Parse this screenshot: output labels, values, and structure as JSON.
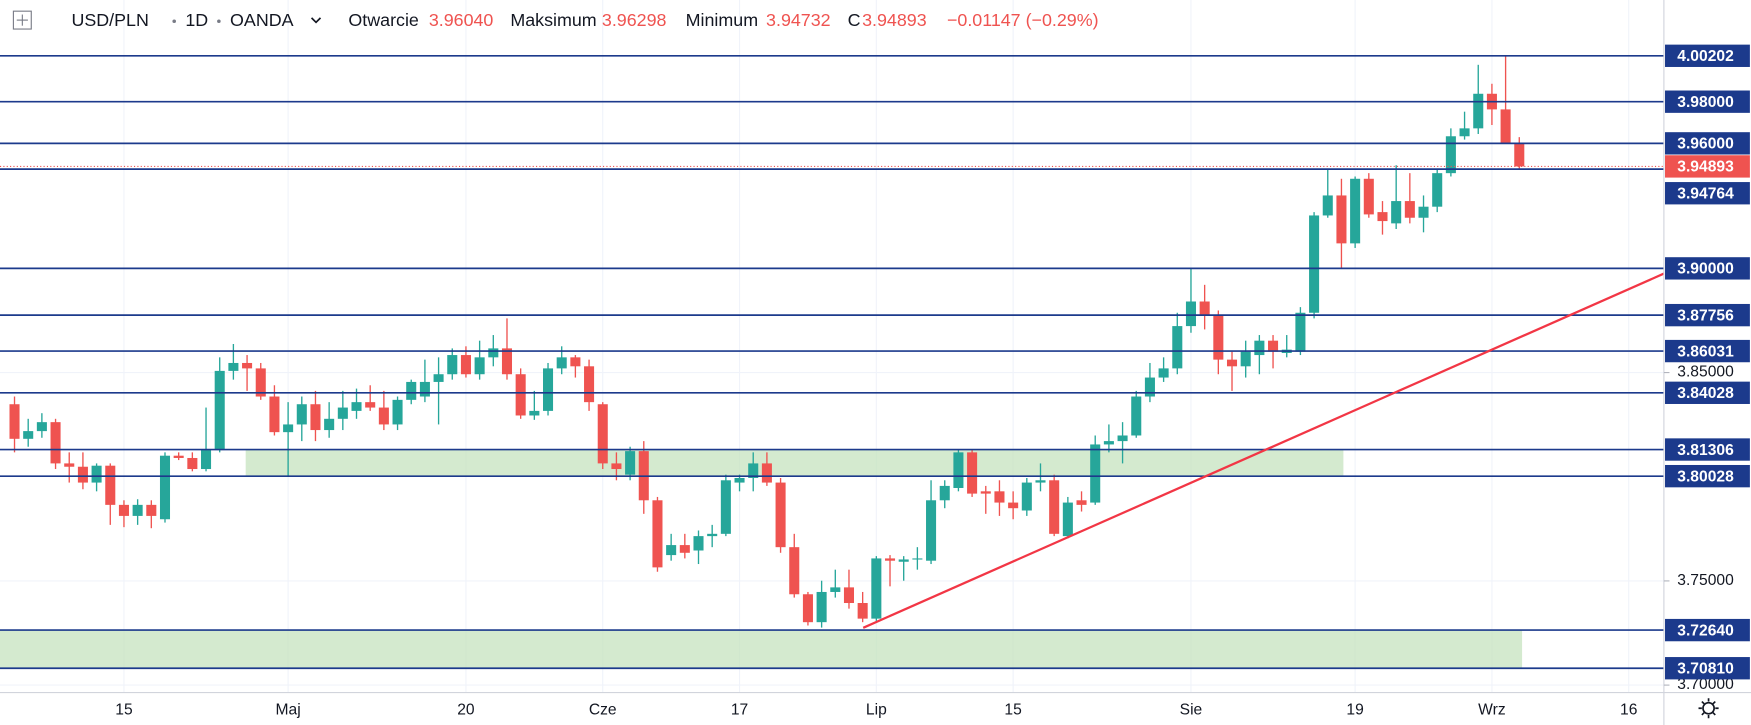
{
  "header": {
    "symbol": "USD/PLN",
    "interval": "1D",
    "source": "OANDA",
    "fields": [
      {
        "label": "Otwarcie",
        "value": "3.96040"
      },
      {
        "label": "Maksimum",
        "value": "3.96298"
      },
      {
        "label": "Minimum",
        "value": "3.94732"
      },
      {
        "label": "C",
        "value": "3.94893"
      }
    ],
    "change": "−0.01147 (−0.29%)"
  },
  "chart_data": {
    "type": "candlestick",
    "up_color": "#26a69a",
    "down_color": "#ef5350",
    "level_color": "#1c3a8c",
    "zone_color": "#c5e3bf",
    "grid": true,
    "ylim": [
      3.6964,
      4.0288
    ],
    "yticks": [
      {
        "value": 3.7,
        "label": "3.70000"
      },
      {
        "value": 3.75,
        "label": "3.75000"
      },
      {
        "value": 3.85,
        "label": "3.85000"
      }
    ],
    "levels": [
      {
        "value": 4.00202,
        "label": "4.00202"
      },
      {
        "value": 3.98,
        "label": "3.98000"
      },
      {
        "value": 3.96,
        "label": "3.96000"
      },
      {
        "value": 3.94764,
        "label": "3.94764"
      },
      {
        "value": 3.9,
        "label": "3.90000"
      },
      {
        "value": 3.87756,
        "label": "3.87756"
      },
      {
        "value": 3.86031,
        "label": "3.86031"
      },
      {
        "value": 3.84028,
        "label": "3.84028"
      },
      {
        "value": 3.81306,
        "label": "3.81306"
      },
      {
        "value": 3.80028,
        "label": "3.80028"
      },
      {
        "value": 3.7264,
        "label": "3.72640"
      },
      {
        "value": 3.7081,
        "label": "3.70810"
      }
    ],
    "last_price": {
      "value": 3.94893,
      "label": "3.94893",
      "color": "#ef5350"
    },
    "zones": [
      {
        "from": 3.80028,
        "to": 3.81306
      },
      {
        "from": 3.7081,
        "to": 3.7264
      }
    ],
    "trendline": {
      "color": "#f23645",
      "values": [
        3.7275,
        3.8975
      ]
    },
    "categories": [
      null,
      null,
      null,
      null,
      null,
      null,
      null,
      null,
      "15",
      null,
      null,
      null,
      null,
      null,
      null,
      null,
      null,
      null,
      null,
      null,
      "Maj",
      null,
      null,
      null,
      null,
      null,
      null,
      null,
      null,
      null,
      null,
      null,
      null,
      "20",
      null,
      null,
      null,
      null,
      null,
      null,
      null,
      null,
      null,
      "Cze",
      null,
      null,
      null,
      null,
      null,
      null,
      null,
      null,
      null,
      "17",
      null,
      null,
      null,
      null,
      null,
      null,
      null,
      null,
      null,
      "Lip",
      null,
      null,
      null,
      null,
      null,
      null,
      null,
      null,
      null,
      "15",
      null,
      null,
      null,
      null,
      null,
      null,
      null,
      null,
      null,
      null,
      null,
      null,
      "Sie",
      null,
      null,
      null,
      null,
      null,
      null,
      null,
      null,
      null,
      null,
      null,
      "19",
      null,
      null,
      null,
      null,
      null,
      null,
      null,
      null,
      null,
      "Wrz",
      null,
      null,
      null,
      null,
      null,
      null,
      null,
      null,
      null,
      "16"
    ],
    "open": [
      3.8348,
      3.8182,
      3.8219,
      3.8262,
      3.8064,
      3.8048,
      3.7972,
      3.8053,
      3.7865,
      3.7812,
      3.7865,
      3.7796,
      3.8101,
      3.809,
      3.8037,
      3.8128,
      3.8508,
      3.8546,
      3.852,
      3.8385,
      3.8214,
      3.8251,
      3.8348,
      3.8224,
      3.8278,
      3.8316,
      3.8358,
      3.8332,
      3.8251,
      3.8369,
      3.8385,
      3.8455,
      3.8492,
      3.8584,
      3.8492,
      3.8573,
      3.8616,
      3.8492,
      3.8294,
      3.8316,
      3.852,
      3.8573,
      3.853,
      3.8348,
      3.8064,
      3.801,
      3.8123,
      3.7887,
      3.7624,
      3.7672,
      3.7646,
      3.7715,
      3.7726,
      3.7972,
      3.7994,
      3.8064,
      3.7972,
      3.7662,
      3.7436,
      3.7302,
      3.7447,
      3.7469,
      3.7394,
      3.7319,
      3.7608,
      3.7592,
      3.7603,
      3.7597,
      3.7887,
      3.7946,
      3.8117,
      3.793,
      3.793,
      3.7876,
      3.7838,
      3.7972,
      3.7983,
      3.7715,
      3.7887,
      3.7876,
      3.8155,
      3.8171,
      3.8198,
      3.8385,
      3.8476,
      3.852,
      3.8723,
      3.8841,
      3.8776,
      3.8562,
      3.853,
      3.8584,
      3.8653,
      3.8594,
      3.86,
      3.8787,
      3.9254,
      3.935,
      3.912,
      3.943,
      3.927,
      3.9216,
      3.9323,
      3.9243,
      3.9296,
      3.9457,
      3.9634,
      3.9672,
      3.9838,
      3.9763,
      3.9604,
      null,
      null,
      null,
      null,
      null,
      null,
      null,
      null
    ],
    "high": [
      3.8385,
      3.8278,
      3.8305,
      3.8278,
      3.8117,
      3.8117,
      3.8064,
      3.8064,
      3.7887,
      3.7892,
      3.7887,
      3.8117,
      3.8117,
      3.8117,
      3.8332,
      3.8573,
      3.8637,
      3.8584,
      3.8546,
      3.8439,
      3.8358,
      3.8385,
      3.8412,
      3.8358,
      3.8412,
      3.8423,
      3.8439,
      3.8412,
      3.8385,
      3.8466,
      3.8562,
      3.8573,
      3.8616,
      3.8626,
      3.8653,
      3.868,
      3.876,
      3.852,
      3.8412,
      3.8546,
      3.8626,
      3.8584,
      3.8562,
      3.8358,
      3.8117,
      3.8144,
      3.8171,
      3.7903,
      3.7726,
      3.7726,
      3.7742,
      3.7769,
      3.801,
      3.801,
      3.8117,
      3.8117,
      3.7994,
      3.7726,
      3.7447,
      3.7501,
      3.7554,
      3.7554,
      3.7447,
      3.7619,
      3.7624,
      3.7619,
      3.7662,
      3.7983,
      3.7983,
      3.8133,
      3.8128,
      3.7956,
      3.7983,
      3.793,
      3.7994,
      3.8064,
      3.801,
      3.7903,
      3.793,
      3.8198,
      3.8251,
      3.8262,
      3.8412,
      3.8546,
      3.8573,
      3.8787,
      3.9002,
      3.8921,
      3.8798,
      3.86,
      3.8653,
      3.868,
      3.868,
      3.868,
      3.8814,
      3.927,
      3.9473,
      3.943,
      3.9441,
      3.9457,
      3.9323,
      3.9495,
      3.9457,
      3.935,
      3.9473,
      3.9672,
      3.9752,
      3.9977,
      3.9886,
      4.002,
      3.96298,
      null,
      null,
      null,
      null,
      null,
      null,
      null,
      null
    ],
    "low": [
      3.8117,
      3.8144,
      3.8187,
      3.8037,
      3.7972,
      3.794,
      3.793,
      3.7769,
      3.7758,
      3.7769,
      3.7753,
      3.778,
      3.808,
      3.8026,
      3.8026,
      3.8117,
      3.8466,
      3.8412,
      3.8369,
      3.8198,
      3.8005,
      3.8171,
      3.8171,
      3.8187,
      3.8224,
      3.8278,
      3.8316,
      3.8224,
      3.8224,
      3.8348,
      3.8358,
      3.8251,
      3.8466,
      3.8476,
      3.8466,
      3.853,
      3.8466,
      3.8278,
      3.8273,
      3.8294,
      3.8492,
      3.8476,
      3.8316,
      3.8037,
      3.7983,
      3.7983,
      3.7822,
      3.7544,
      3.7597,
      3.7608,
      3.7581,
      3.7662,
      3.7715,
      3.793,
      3.793,
      3.7956,
      3.7635,
      3.742,
      3.7286,
      3.7276,
      3.742,
      3.7367,
      3.7302,
      3.7308,
      3.7474,
      3.7501,
      3.7554,
      3.7581,
      3.7849,
      3.793,
      3.7903,
      3.7822,
      3.7812,
      3.7796,
      3.7812,
      3.793,
      3.7715,
      3.7704,
      3.7833,
      3.7865,
      3.8117,
      3.8064,
      3.8187,
      3.8358,
      3.8455,
      3.8492,
      3.8691,
      3.8707,
      3.8492,
      3.8412,
      3.8476,
      3.8492,
      3.852,
      3.8573,
      3.8584,
      3.876,
      3.9243,
      3.9002,
      3.9098,
      3.9243,
      3.9162,
      3.9189,
      3.9216,
      3.9173,
      3.927,
      3.9441,
      3.9618,
      3.9645,
      3.9688,
      3.9618,
      3.94732,
      null,
      null,
      null,
      null,
      null,
      null,
      null,
      null
    ],
    "close": [
      3.8182,
      3.8219,
      3.8262,
      3.8064,
      3.8048,
      3.7972,
      3.8053,
      3.7865,
      3.7812,
      3.7865,
      3.7812,
      3.8101,
      3.809,
      3.8037,
      3.8128,
      3.8508,
      3.8546,
      3.852,
      3.8385,
      3.8214,
      3.8251,
      3.8348,
      3.8224,
      3.8278,
      3.8332,
      3.8358,
      3.8332,
      3.8251,
      3.8369,
      3.8455,
      3.8455,
      3.8492,
      3.8584,
      3.8492,
      3.8573,
      3.8616,
      3.8492,
      3.8294,
      3.8316,
      3.852,
      3.8573,
      3.853,
      3.8358,
      3.8064,
      3.8037,
      3.8123,
      3.7887,
      3.7565,
      3.7672,
      3.7635,
      3.7715,
      3.7726,
      3.7983,
      3.7994,
      3.8064,
      3.7972,
      3.7662,
      3.7436,
      3.7302,
      3.7447,
      3.7469,
      3.7394,
      3.7319,
      3.7608,
      3.7597,
      3.7603,
      3.7608,
      3.7887,
      3.7956,
      3.8117,
      3.7919,
      3.7919,
      3.7876,
      3.7849,
      3.7972,
      3.7983,
      3.7726,
      3.7876,
      3.7865,
      3.8155,
      3.8171,
      3.8198,
      3.8385,
      3.8476,
      3.852,
      3.8723,
      3.8841,
      3.8776,
      3.8562,
      3.853,
      3.86,
      3.8653,
      3.86,
      3.861,
      3.8787,
      3.9254,
      3.935,
      3.912,
      3.943,
      3.9259,
      3.9227,
      3.9323,
      3.9243,
      3.9296,
      3.9457,
      3.9634,
      3.9672,
      3.9838,
      3.9763,
      3.9602,
      3.94893,
      null,
      null,
      null,
      null,
      null,
      null,
      null,
      null
    ]
  }
}
